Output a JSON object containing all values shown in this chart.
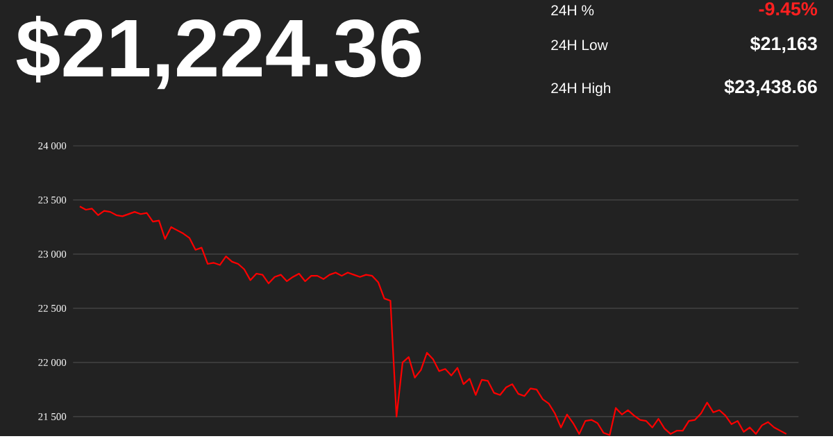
{
  "chart_data": {
    "type": "line",
    "title": "$21,224.36",
    "annotations": [
      "24H %",
      "-9.45%",
      "24H Low",
      "$21,163",
      "24H High",
      "$23,438.66"
    ],
    "categories": [
      null,
      null,
      null,
      null,
      null,
      null,
      null,
      null,
      null,
      null,
      null,
      null,
      null,
      null,
      null,
      null,
      null,
      null,
      null,
      null,
      null,
      null,
      null,
      null,
      null,
      null,
      null,
      null,
      null,
      null,
      null,
      null,
      null,
      null,
      null,
      null,
      null,
      null,
      null,
      null,
      null,
      null,
      null,
      null,
      null,
      null,
      null,
      null,
      null,
      null,
      null,
      null,
      null,
      null,
      null,
      null,
      null,
      null,
      null,
      null,
      null,
      null,
      null,
      null,
      null,
      null,
      null,
      null,
      null,
      null,
      null,
      null,
      null,
      null,
      null,
      null,
      null,
      null,
      null,
      null,
      null,
      null,
      null,
      null,
      null,
      null,
      null,
      null,
      null,
      null,
      null,
      null,
      null,
      null,
      null,
      null,
      null,
      null,
      null,
      null,
      null,
      null,
      null,
      null,
      null,
      null,
      null,
      null,
      null,
      null,
      null,
      null,
      null,
      null,
      null,
      null,
      null
    ],
    "values": [
      23440,
      23410,
      23420,
      23360,
      23400,
      23390,
      23360,
      23350,
      23370,
      23390,
      23370,
      23380,
      23300,
      23310,
      23140,
      23250,
      23220,
      23190,
      23150,
      23040,
      23060,
      22910,
      22920,
      22900,
      22980,
      22930,
      22910,
      22860,
      22760,
      22820,
      22810,
      22730,
      22790,
      22810,
      22750,
      22790,
      22820,
      22750,
      22800,
      22800,
      22770,
      22810,
      22830,
      22800,
      22830,
      22810,
      22790,
      22810,
      22800,
      22740,
      22590,
      22570,
      21500,
      22000,
      22050,
      21860,
      21930,
      22090,
      22030,
      21920,
      21940,
      21880,
      21950,
      21800,
      21850,
      21700,
      21840,
      21830,
      21720,
      21700,
      21770,
      21800,
      21710,
      21690,
      21760,
      21750,
      21660,
      21620,
      21530,
      21400,
      21520,
      21440,
      21340,
      21460,
      21470,
      21440,
      21350,
      21330,
      21580,
      21520,
      21560,
      21510,
      21470,
      21460,
      21400,
      21480,
      21390,
      21340,
      21370,
      21370,
      21460,
      21470,
      21530,
      21630,
      21540,
      21560,
      21510,
      21430,
      21460,
      21360,
      21400,
      21340,
      21420,
      21450,
      21400,
      21370,
      21340
    ],
    "color": "#ff0000",
    "ylim": [
      21320,
      24000
    ],
    "yticks": [
      {
        "value": 21500,
        "label": "21 500"
      },
      {
        "value": 22000,
        "label": "22 000"
      },
      {
        "value": 22500,
        "label": "22 500"
      },
      {
        "value": 23000,
        "label": "23 000"
      },
      {
        "value": 23500,
        "label": "23 500"
      },
      {
        "value": 24000,
        "label": "24 000"
      }
    ],
    "grid": "y",
    "tick_labels": "y"
  }
}
